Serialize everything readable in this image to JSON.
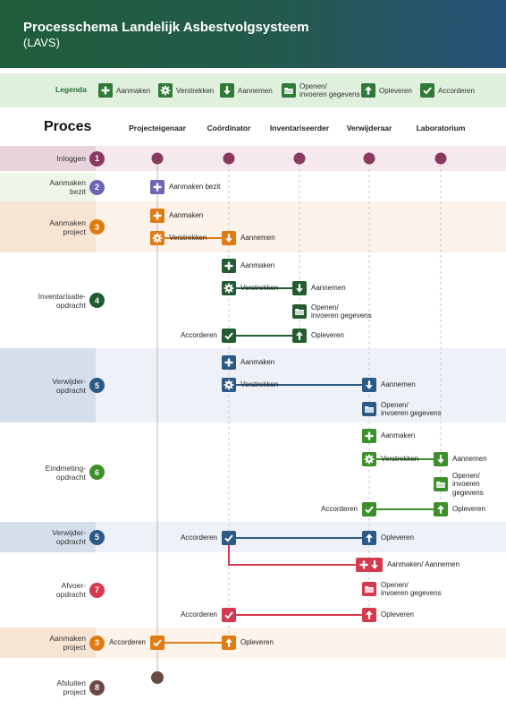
{
  "header": {
    "title": "Processchema Landelijk Asbestvolgsysteem",
    "subtitle": "(LAVS)"
  },
  "legend": {
    "label": "Legenda",
    "items": [
      {
        "label": "Aanmaken",
        "icon": "plus-icon"
      },
      {
        "label": "Verstrekken",
        "icon": "gear-icon"
      },
      {
        "label": "Aannemen",
        "icon": "arrow-down-icon"
      },
      {
        "label": "Openen/\ninvoeren gegevens",
        "icon": "folder-icon"
      },
      {
        "label": "Opleveren",
        "icon": "arrow-up-icon"
      },
      {
        "label": "Accorderen",
        "icon": "check-icon"
      }
    ]
  },
  "proces_label": "Proces",
  "lanes": [
    "Projecteigenaar",
    "Coördinator",
    "Inventariseerder",
    "Verwijderaar",
    "Laboratorium"
  ],
  "rows": [
    {
      "label": "Inloggen",
      "num": "1"
    },
    {
      "label": "Aanmaken\nbezit",
      "num": "2"
    },
    {
      "label": "Aanmaken\nproject",
      "num": "3"
    },
    {
      "label": "Inventarisatie-\nopdracht",
      "num": "4"
    },
    {
      "label": "Verwijder-\nopdracht",
      "num": "5"
    },
    {
      "label": "Eindmeting-\nopdracht",
      "num": "6"
    },
    {
      "label": "Verwijder-\nopdracht",
      "num": "5"
    },
    {
      "label": "Afvoer-\nopdracht",
      "num": "7"
    },
    {
      "label": "Aanmaken\nproject",
      "num": "3"
    },
    {
      "label": "Afsluiten\nproject",
      "num": "8"
    }
  ],
  "steps": {
    "s1": "Aanmaken bezit",
    "s2": "Aanmaken",
    "s3": "Verstrekken",
    "s4": "Aannemen",
    "s5": "Aanmaken",
    "s6": "Verstrekken",
    "s7": "Aannemen",
    "s8": "Openen/\ninvoeren gegevens",
    "s9": "Accorderen",
    "s10": "Opleveren",
    "s11": "Aanmaken",
    "s12": "Verstrekken",
    "s13": "Aannemen",
    "s14": "Openen/\ninvoeren gegevens",
    "s15": "Aanmaken",
    "s16": "Verstrekken",
    "s17": "Aannemen",
    "s18": "Openen/\ninvoeren\ngegevens",
    "s19": "Accorderen",
    "s20": "Opleveren",
    "s21": "Accorderen",
    "s22": "Opleveren",
    "s23": "Aanmaken/ Aannemen",
    "s24": "Openen/\ninvoeren gegevens",
    "s25": "Accorderen",
    "s26": "Opleveren",
    "s27": "Accorderen",
    "s28": "Opleveren"
  },
  "colors": {
    "purple": "#8a3a5e",
    "violet": "#6c66b3",
    "orange": "#e07b12",
    "darkgreen": "#235b32",
    "blue": "#2c5a85",
    "green": "#3d8f2b",
    "red": "#d43a4f",
    "brown": "#6b4a44"
  }
}
